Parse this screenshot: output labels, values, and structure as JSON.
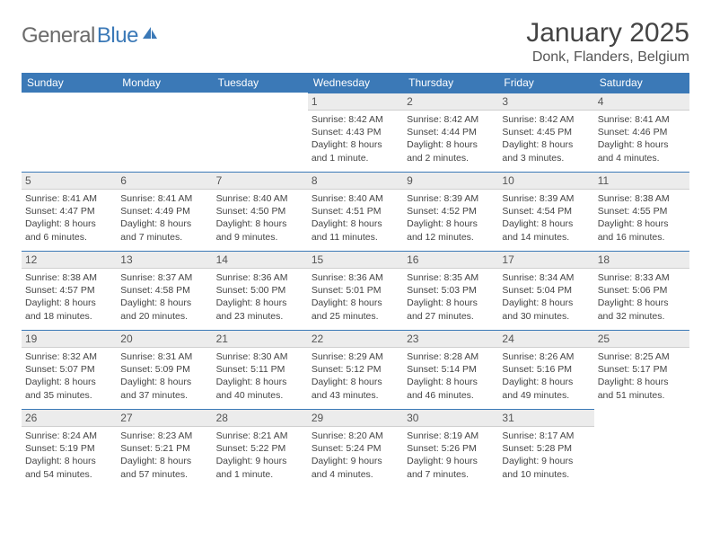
{
  "branding": {
    "logo_general": "General",
    "logo_blue": "Blue",
    "logo_icon_color": "#3b79b7"
  },
  "header": {
    "title": "January 2025",
    "location": "Donk, Flanders, Belgium"
  },
  "colors": {
    "header_bg": "#3b79b7",
    "header_text": "#ffffff",
    "daynum_bg": "#ececec",
    "daynum_border_top": "#3b79b7",
    "body_text": "#444444"
  },
  "day_labels": [
    "Sunday",
    "Monday",
    "Tuesday",
    "Wednesday",
    "Thursday",
    "Friday",
    "Saturday"
  ],
  "weeks": [
    [
      {
        "n": "",
        "sr": "",
        "ss": "",
        "dl": ""
      },
      {
        "n": "",
        "sr": "",
        "ss": "",
        "dl": ""
      },
      {
        "n": "",
        "sr": "",
        "ss": "",
        "dl": ""
      },
      {
        "n": "1",
        "sr": "Sunrise: 8:42 AM",
        "ss": "Sunset: 4:43 PM",
        "dl": "Daylight: 8 hours and 1 minute."
      },
      {
        "n": "2",
        "sr": "Sunrise: 8:42 AM",
        "ss": "Sunset: 4:44 PM",
        "dl": "Daylight: 8 hours and 2 minutes."
      },
      {
        "n": "3",
        "sr": "Sunrise: 8:42 AM",
        "ss": "Sunset: 4:45 PM",
        "dl": "Daylight: 8 hours and 3 minutes."
      },
      {
        "n": "4",
        "sr": "Sunrise: 8:41 AM",
        "ss": "Sunset: 4:46 PM",
        "dl": "Daylight: 8 hours and 4 minutes."
      }
    ],
    [
      {
        "n": "5",
        "sr": "Sunrise: 8:41 AM",
        "ss": "Sunset: 4:47 PM",
        "dl": "Daylight: 8 hours and 6 minutes."
      },
      {
        "n": "6",
        "sr": "Sunrise: 8:41 AM",
        "ss": "Sunset: 4:49 PM",
        "dl": "Daylight: 8 hours and 7 minutes."
      },
      {
        "n": "7",
        "sr": "Sunrise: 8:40 AM",
        "ss": "Sunset: 4:50 PM",
        "dl": "Daylight: 8 hours and 9 minutes."
      },
      {
        "n": "8",
        "sr": "Sunrise: 8:40 AM",
        "ss": "Sunset: 4:51 PM",
        "dl": "Daylight: 8 hours and 11 minutes."
      },
      {
        "n": "9",
        "sr": "Sunrise: 8:39 AM",
        "ss": "Sunset: 4:52 PM",
        "dl": "Daylight: 8 hours and 12 minutes."
      },
      {
        "n": "10",
        "sr": "Sunrise: 8:39 AM",
        "ss": "Sunset: 4:54 PM",
        "dl": "Daylight: 8 hours and 14 minutes."
      },
      {
        "n": "11",
        "sr": "Sunrise: 8:38 AM",
        "ss": "Sunset: 4:55 PM",
        "dl": "Daylight: 8 hours and 16 minutes."
      }
    ],
    [
      {
        "n": "12",
        "sr": "Sunrise: 8:38 AM",
        "ss": "Sunset: 4:57 PM",
        "dl": "Daylight: 8 hours and 18 minutes."
      },
      {
        "n": "13",
        "sr": "Sunrise: 8:37 AM",
        "ss": "Sunset: 4:58 PM",
        "dl": "Daylight: 8 hours and 20 minutes."
      },
      {
        "n": "14",
        "sr": "Sunrise: 8:36 AM",
        "ss": "Sunset: 5:00 PM",
        "dl": "Daylight: 8 hours and 23 minutes."
      },
      {
        "n": "15",
        "sr": "Sunrise: 8:36 AM",
        "ss": "Sunset: 5:01 PM",
        "dl": "Daylight: 8 hours and 25 minutes."
      },
      {
        "n": "16",
        "sr": "Sunrise: 8:35 AM",
        "ss": "Sunset: 5:03 PM",
        "dl": "Daylight: 8 hours and 27 minutes."
      },
      {
        "n": "17",
        "sr": "Sunrise: 8:34 AM",
        "ss": "Sunset: 5:04 PM",
        "dl": "Daylight: 8 hours and 30 minutes."
      },
      {
        "n": "18",
        "sr": "Sunrise: 8:33 AM",
        "ss": "Sunset: 5:06 PM",
        "dl": "Daylight: 8 hours and 32 minutes."
      }
    ],
    [
      {
        "n": "19",
        "sr": "Sunrise: 8:32 AM",
        "ss": "Sunset: 5:07 PM",
        "dl": "Daylight: 8 hours and 35 minutes."
      },
      {
        "n": "20",
        "sr": "Sunrise: 8:31 AM",
        "ss": "Sunset: 5:09 PM",
        "dl": "Daylight: 8 hours and 37 minutes."
      },
      {
        "n": "21",
        "sr": "Sunrise: 8:30 AM",
        "ss": "Sunset: 5:11 PM",
        "dl": "Daylight: 8 hours and 40 minutes."
      },
      {
        "n": "22",
        "sr": "Sunrise: 8:29 AM",
        "ss": "Sunset: 5:12 PM",
        "dl": "Daylight: 8 hours and 43 minutes."
      },
      {
        "n": "23",
        "sr": "Sunrise: 8:28 AM",
        "ss": "Sunset: 5:14 PM",
        "dl": "Daylight: 8 hours and 46 minutes."
      },
      {
        "n": "24",
        "sr": "Sunrise: 8:26 AM",
        "ss": "Sunset: 5:16 PM",
        "dl": "Daylight: 8 hours and 49 minutes."
      },
      {
        "n": "25",
        "sr": "Sunrise: 8:25 AM",
        "ss": "Sunset: 5:17 PM",
        "dl": "Daylight: 8 hours and 51 minutes."
      }
    ],
    [
      {
        "n": "26",
        "sr": "Sunrise: 8:24 AM",
        "ss": "Sunset: 5:19 PM",
        "dl": "Daylight: 8 hours and 54 minutes."
      },
      {
        "n": "27",
        "sr": "Sunrise: 8:23 AM",
        "ss": "Sunset: 5:21 PM",
        "dl": "Daylight: 8 hours and 57 minutes."
      },
      {
        "n": "28",
        "sr": "Sunrise: 8:21 AM",
        "ss": "Sunset: 5:22 PM",
        "dl": "Daylight: 9 hours and 1 minute."
      },
      {
        "n": "29",
        "sr": "Sunrise: 8:20 AM",
        "ss": "Sunset: 5:24 PM",
        "dl": "Daylight: 9 hours and 4 minutes."
      },
      {
        "n": "30",
        "sr": "Sunrise: 8:19 AM",
        "ss": "Sunset: 5:26 PM",
        "dl": "Daylight: 9 hours and 7 minutes."
      },
      {
        "n": "31",
        "sr": "Sunrise: 8:17 AM",
        "ss": "Sunset: 5:28 PM",
        "dl": "Daylight: 9 hours and 10 minutes."
      },
      {
        "n": "",
        "sr": "",
        "ss": "",
        "dl": ""
      }
    ]
  ]
}
